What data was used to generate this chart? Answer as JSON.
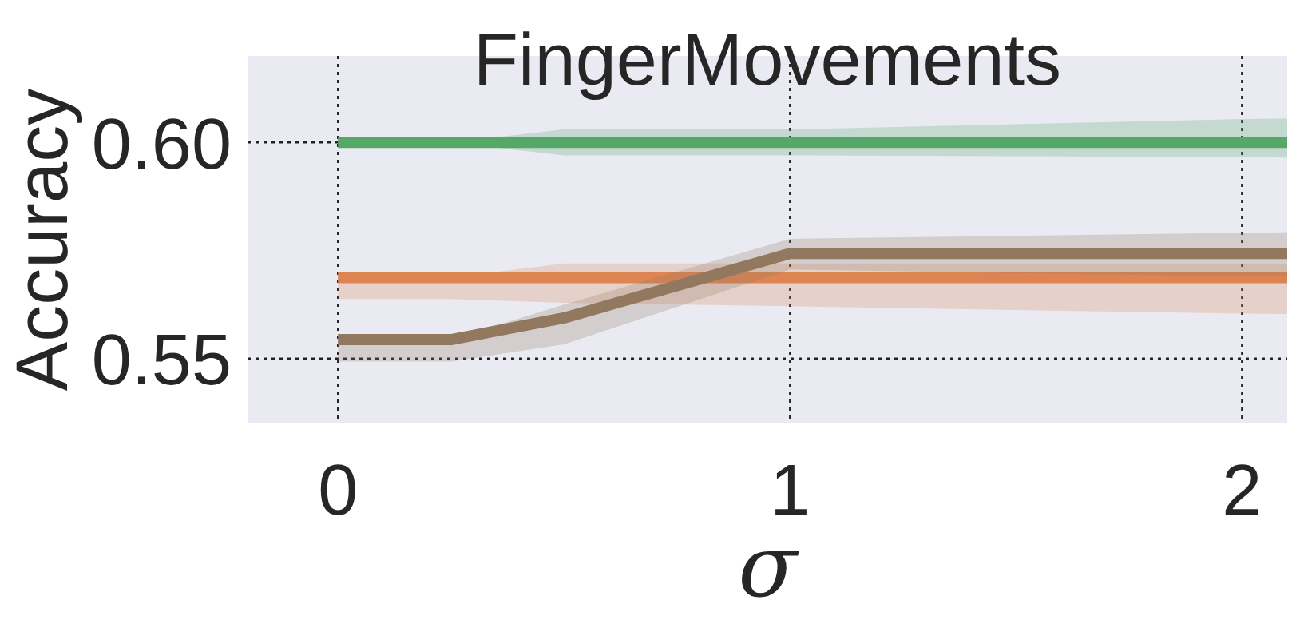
{
  "chart_data": {
    "type": "line",
    "title": "FingerMovements",
    "xlabel": "σ",
    "ylabel": "Accuracy",
    "xlim": [
      -0.2,
      2.1
    ],
    "xticks": [
      0,
      1,
      2
    ],
    "ylim": [
      0.535,
      0.62
    ],
    "yticks": [
      {
        "value": 0.55,
        "label": "0.55"
      },
      {
        "value": 0.6,
        "label": "0.60"
      }
    ],
    "grid": true,
    "marker": "none",
    "line_style": "solid",
    "series": [
      {
        "color": "#55a868",
        "x": [
          0,
          0.25,
          0.5,
          1,
          2,
          2.1
        ],
        "values": [
          0.6,
          0.6,
          0.6,
          0.6,
          0.6,
          0.6
        ],
        "lower": [
          0.6,
          0.6,
          0.597,
          0.597,
          0.5966,
          0.5965
        ],
        "upper": [
          0.6,
          0.6,
          0.603,
          0.603,
          0.6054,
          0.6055
        ]
      },
      {
        "color": "#dd8452",
        "x": [
          0,
          0.25,
          0.5,
          1,
          2,
          2.1
        ],
        "values": [
          0.5687,
          0.5687,
          0.5687,
          0.5687,
          0.5687,
          0.5687
        ],
        "lower": [
          0.5638,
          0.5638,
          0.5629,
          0.5621,
          0.5604,
          0.5603
        ],
        "upper": [
          0.5687,
          0.5687,
          0.572,
          0.572,
          0.572,
          0.572
        ]
      },
      {
        "color": "#937860",
        "x": [
          0,
          0.25,
          0.5,
          1,
          2,
          2.1
        ],
        "values": [
          0.5544,
          0.5544,
          0.5594,
          0.5743,
          0.5743,
          0.5743
        ],
        "lower": [
          0.5493,
          0.5493,
          0.5533,
          0.5706,
          0.569,
          0.569
        ],
        "upper": [
          0.5544,
          0.5544,
          0.5625,
          0.5777,
          0.5791,
          0.5792
        ]
      }
    ]
  }
}
